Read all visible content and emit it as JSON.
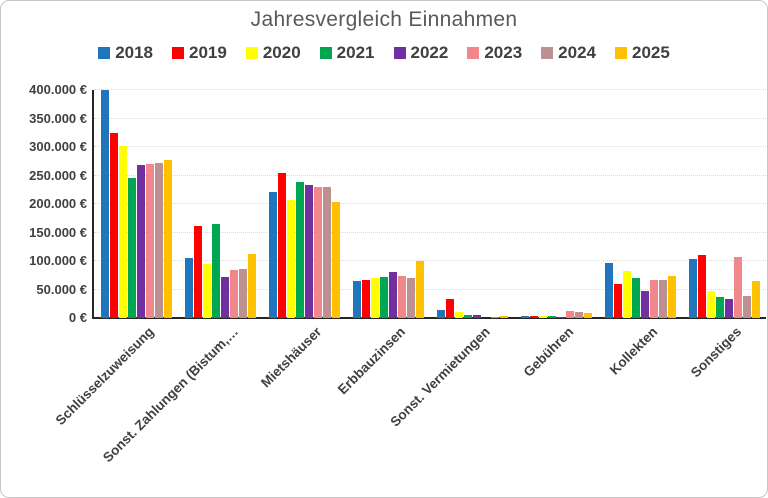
{
  "title": "Jahresvergleich Einnahmen",
  "colors": {
    "title_text": "#595959",
    "axis_text": "#404040",
    "gridline": "#D9D9D9",
    "axis_line": "#262626",
    "frame_border": "#C6C6C6",
    "background": "#FFFFFF"
  },
  "chart_data": {
    "type": "bar",
    "title": "Jahresvergleich Einnahmen",
    "xlabel": "",
    "ylabel": "",
    "ylim": [
      0,
      400000
    ],
    "ytick_step": 50000,
    "ytick_labels": [
      "0 €",
      "50.000 €",
      "100.000 €",
      "150.000 €",
      "200.000 €",
      "250.000 €",
      "300.000 €",
      "350.000 €",
      "400.000 €"
    ],
    "grid": "horizontal-dotted",
    "legend_position": "top",
    "categories": [
      "Schlüsselzuweisung",
      "Sonst. Zahlungen (Bistum,…",
      "Mietshäuser",
      "Erbbauzinsen",
      "Sonst. Vermietungen",
      "Gebühren",
      "Kollekten",
      "Sonstiges"
    ],
    "series": [
      {
        "name": "2018",
        "color": "#2076BC",
        "values": [
          400000,
          105000,
          221000,
          65000,
          14000,
          4000,
          97000,
          103000
        ]
      },
      {
        "name": "2019",
        "color": "#FE0000",
        "values": [
          325000,
          161000,
          254000,
          66000,
          33000,
          4000,
          60000,
          110000
        ]
      },
      {
        "name": "2020",
        "color": "#FFFF00",
        "values": [
          301000,
          95000,
          207000,
          70000,
          11000,
          3000,
          82000,
          48000
        ]
      },
      {
        "name": "2021",
        "color": "#00A651",
        "values": [
          246000,
          165000,
          239000,
          72000,
          5000,
          3000,
          71000,
          36000
        ]
      },
      {
        "name": "2022",
        "color": "#7030A0",
        "values": [
          268000,
          72000,
          233000,
          80000,
          5000,
          2000,
          48000,
          34000
        ]
      },
      {
        "name": "2023",
        "color": "#F0878B",
        "values": [
          271000,
          84000,
          229000,
          74000,
          0,
          13000,
          66000,
          107000
        ]
      },
      {
        "name": "2024",
        "color": "#BD9091",
        "values": [
          272000,
          86000,
          229000,
          70000,
          2000,
          10000,
          66000,
          39000
        ]
      },
      {
        "name": "2025",
        "color": "#FFC000",
        "values": [
          278000,
          113000,
          204000,
          100000,
          3000,
          9000,
          74000,
          65000
        ]
      }
    ]
  }
}
